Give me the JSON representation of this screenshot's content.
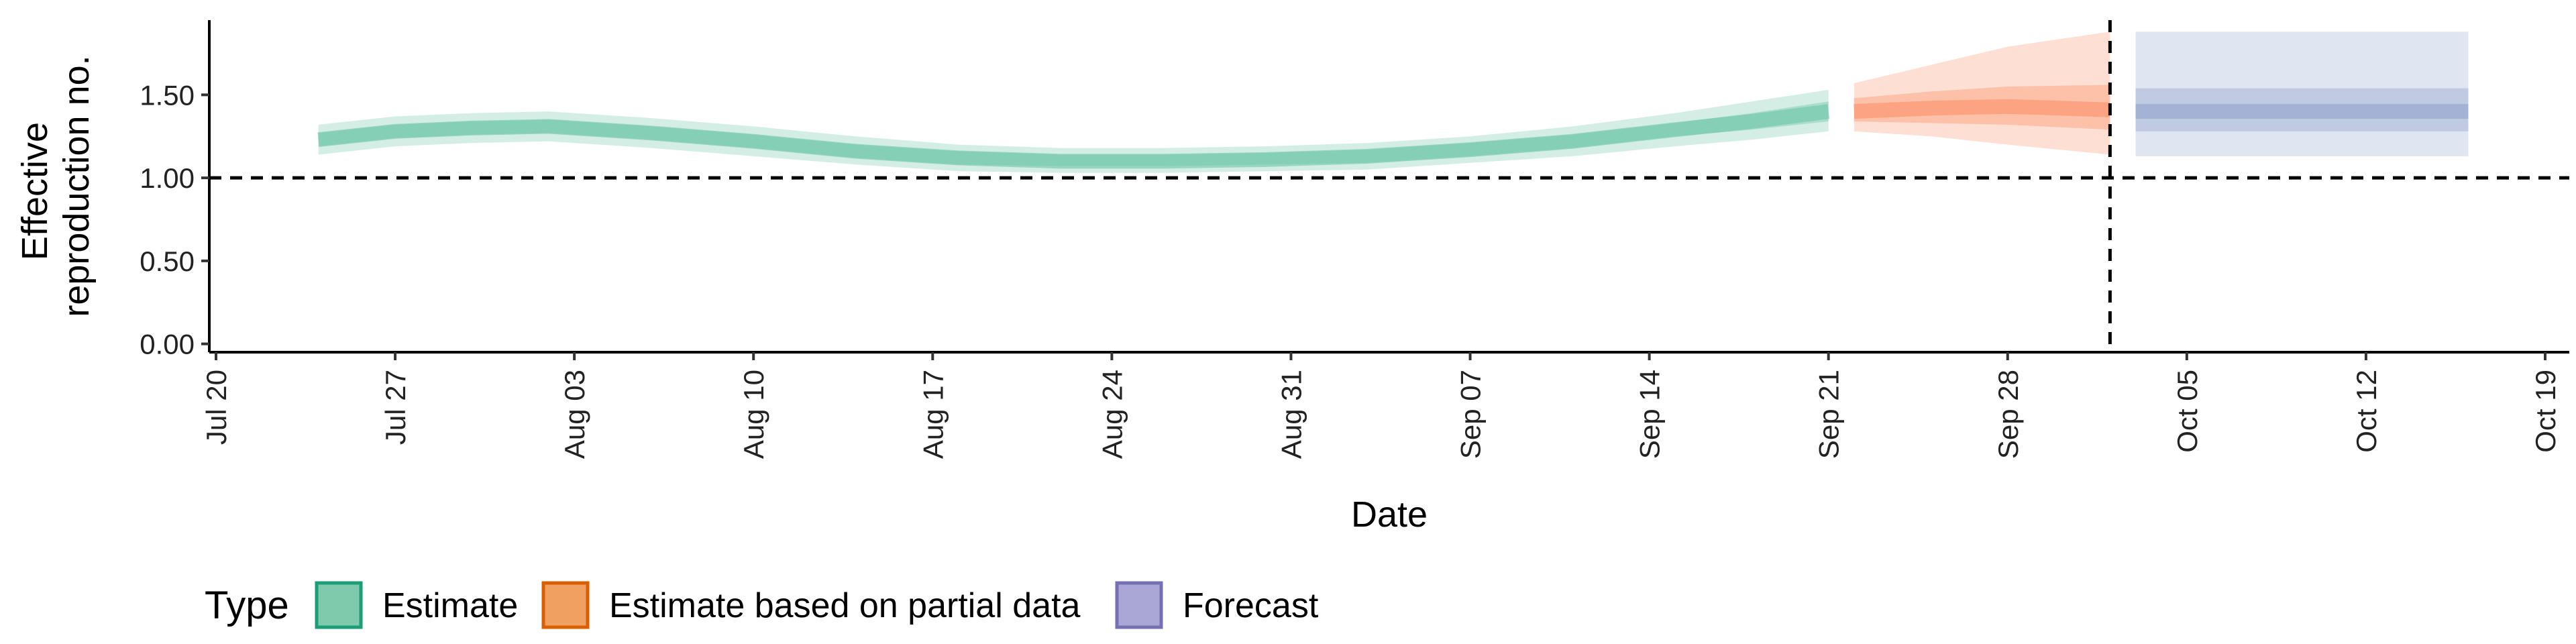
{
  "chart_data": {
    "type": "area",
    "xlabel": "Date",
    "ylabel_lines": [
      "Effective",
      "reproduction no."
    ],
    "x_domain": [
      "2020-07-20",
      "2020-10-19"
    ],
    "y_domain": [
      -0.05,
      1.95
    ],
    "x_ticks": [
      {
        "date": "2020-07-20",
        "label": "Jul 20"
      },
      {
        "date": "2020-07-27",
        "label": "Jul 27"
      },
      {
        "date": "2020-08-03",
        "label": "Aug 03"
      },
      {
        "date": "2020-08-10",
        "label": "Aug 10"
      },
      {
        "date": "2020-08-17",
        "label": "Aug 17"
      },
      {
        "date": "2020-08-24",
        "label": "Aug 24"
      },
      {
        "date": "2020-08-31",
        "label": "Aug 31"
      },
      {
        "date": "2020-09-07",
        "label": "Sep 07"
      },
      {
        "date": "2020-09-14",
        "label": "Sep 14"
      },
      {
        "date": "2020-09-21",
        "label": "Sep 21"
      },
      {
        "date": "2020-09-28",
        "label": "Sep 28"
      },
      {
        "date": "2020-10-05",
        "label": "Oct 05"
      },
      {
        "date": "2020-10-12",
        "label": "Oct 12"
      },
      {
        "date": "2020-10-19",
        "label": "Oct 19"
      }
    ],
    "y_ticks": [
      {
        "value": 0,
        "label": "0.00"
      },
      {
        "value": 0.5,
        "label": "0.50"
      },
      {
        "value": 1,
        "label": "1.00"
      },
      {
        "value": 1.5,
        "label": "1.50"
      }
    ],
    "reference_hline": 1.0,
    "reference_vline": "2020-10-02",
    "series": [
      {
        "name": "Estimate",
        "color": "#1b9e77",
        "fill": "#66c2a5",
        "points": [
          {
            "date": "2020-07-24",
            "median": 1.23,
            "lower90": 1.14,
            "upper90": 1.32,
            "lower50": 1.19,
            "upper50": 1.27
          },
          {
            "date": "2020-07-27",
            "median": 1.28,
            "lower90": 1.19,
            "upper90": 1.37,
            "lower50": 1.24,
            "upper50": 1.32
          },
          {
            "date": "2020-07-30",
            "median": 1.3,
            "lower90": 1.21,
            "upper90": 1.39,
            "lower50": 1.26,
            "upper50": 1.34
          },
          {
            "date": "2020-08-02",
            "median": 1.31,
            "lower90": 1.22,
            "upper90": 1.4,
            "lower50": 1.27,
            "upper50": 1.35
          },
          {
            "date": "2020-08-06",
            "median": 1.27,
            "lower90": 1.18,
            "upper90": 1.36,
            "lower50": 1.23,
            "upper50": 1.31
          },
          {
            "date": "2020-08-10",
            "median": 1.22,
            "lower90": 1.13,
            "upper90": 1.31,
            "lower50": 1.18,
            "upper50": 1.26
          },
          {
            "date": "2020-08-14",
            "median": 1.16,
            "lower90": 1.08,
            "upper90": 1.25,
            "lower50": 1.12,
            "upper50": 1.2
          },
          {
            "date": "2020-08-18",
            "median": 1.12,
            "lower90": 1.04,
            "upper90": 1.2,
            "lower50": 1.08,
            "upper50": 1.16
          },
          {
            "date": "2020-08-22",
            "median": 1.1,
            "lower90": 1.03,
            "upper90": 1.18,
            "lower50": 1.07,
            "upper50": 1.14
          },
          {
            "date": "2020-08-26",
            "median": 1.1,
            "lower90": 1.03,
            "upper90": 1.18,
            "lower50": 1.07,
            "upper50": 1.14
          },
          {
            "date": "2020-08-30",
            "median": 1.11,
            "lower90": 1.04,
            "upper90": 1.19,
            "lower50": 1.08,
            "upper50": 1.15
          },
          {
            "date": "2020-09-03",
            "median": 1.13,
            "lower90": 1.05,
            "upper90": 1.21,
            "lower50": 1.09,
            "upper50": 1.17
          },
          {
            "date": "2020-09-07",
            "median": 1.17,
            "lower90": 1.09,
            "upper90": 1.25,
            "lower50": 1.13,
            "upper50": 1.21
          },
          {
            "date": "2020-09-11",
            "median": 1.22,
            "lower90": 1.13,
            "upper90": 1.31,
            "lower50": 1.18,
            "upper50": 1.26
          },
          {
            "date": "2020-09-15",
            "median": 1.29,
            "lower90": 1.19,
            "upper90": 1.39,
            "lower50": 1.25,
            "upper50": 1.33
          },
          {
            "date": "2020-09-18",
            "median": 1.34,
            "lower90": 1.23,
            "upper90": 1.46,
            "lower50": 1.29,
            "upper50": 1.39
          },
          {
            "date": "2020-09-21",
            "median": 1.4,
            "lower90": 1.28,
            "upper90": 1.53,
            "lower50": 1.34,
            "upper50": 1.46
          }
        ]
      },
      {
        "name": "Estimate based on partial data",
        "color": "#d95f02",
        "fill": "#fc8d62",
        "points": [
          {
            "date": "2020-09-22",
            "median": 1.4,
            "lower90": 1.28,
            "upper90": 1.57,
            "lower50": 1.34,
            "upper50": 1.48
          },
          {
            "date": "2020-09-25",
            "median": 1.42,
            "lower90": 1.25,
            "upper90": 1.68,
            "lower50": 1.33,
            "upper50": 1.52
          },
          {
            "date": "2020-09-28",
            "median": 1.43,
            "lower90": 1.2,
            "upper90": 1.79,
            "lower50": 1.32,
            "upper50": 1.55
          },
          {
            "date": "2020-10-02",
            "median": 1.41,
            "lower90": 1.14,
            "upper90": 1.88,
            "lower50": 1.29,
            "upper50": 1.56
          }
        ]
      },
      {
        "name": "Forecast",
        "color": "#7570b3",
        "fill": "#8da0cb",
        "points": [
          {
            "date": "2020-10-03",
            "median": 1.4,
            "lower90": 1.13,
            "upper90": 1.88,
            "lower50": 1.28,
            "upper50": 1.54
          },
          {
            "date": "2020-10-16",
            "median": 1.4,
            "lower90": 1.13,
            "upper90": 1.88,
            "lower50": 1.28,
            "upper50": 1.54
          }
        ]
      }
    ],
    "legend": {
      "title": "Type",
      "items": [
        {
          "label": "Estimate",
          "fill": "#7fc9ad",
          "stroke": "#1b9e77"
        },
        {
          "label": "Estimate based on partial data",
          "fill": "#f0a060",
          "stroke": "#d95f02"
        },
        {
          "label": "Forecast",
          "fill": "#aaa7d6",
          "stroke": "#7570b3"
        }
      ]
    }
  }
}
